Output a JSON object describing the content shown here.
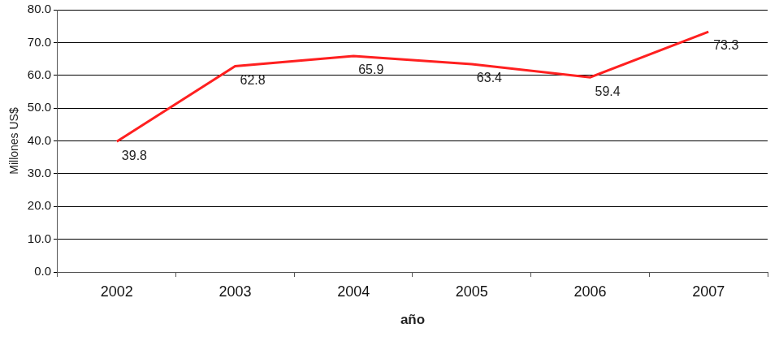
{
  "chart_data": {
    "type": "line",
    "x_label": "año",
    "y_label": "Millones US$",
    "categories": [
      "2002",
      "2003",
      "2004",
      "2005",
      "2006",
      "2007"
    ],
    "values": [
      39.8,
      62.8,
      65.9,
      63.4,
      59.4,
      73.3
    ],
    "color": "#ff2020",
    "ylim": [
      0,
      80
    ],
    "yticks": [
      {
        "value": 0,
        "label": "0.0"
      },
      {
        "value": 10,
        "label": "10.0"
      },
      {
        "value": 20,
        "label": "20.0"
      },
      {
        "value": 30,
        "label": "30.0"
      },
      {
        "value": 40,
        "label": "40.0"
      },
      {
        "value": 50,
        "label": "50.0"
      },
      {
        "value": 60,
        "label": "60.0"
      },
      {
        "value": 70,
        "label": "70.0"
      },
      {
        "value": 80,
        "label": "80.0"
      }
    ],
    "grid": true,
    "data_labels": true
  }
}
